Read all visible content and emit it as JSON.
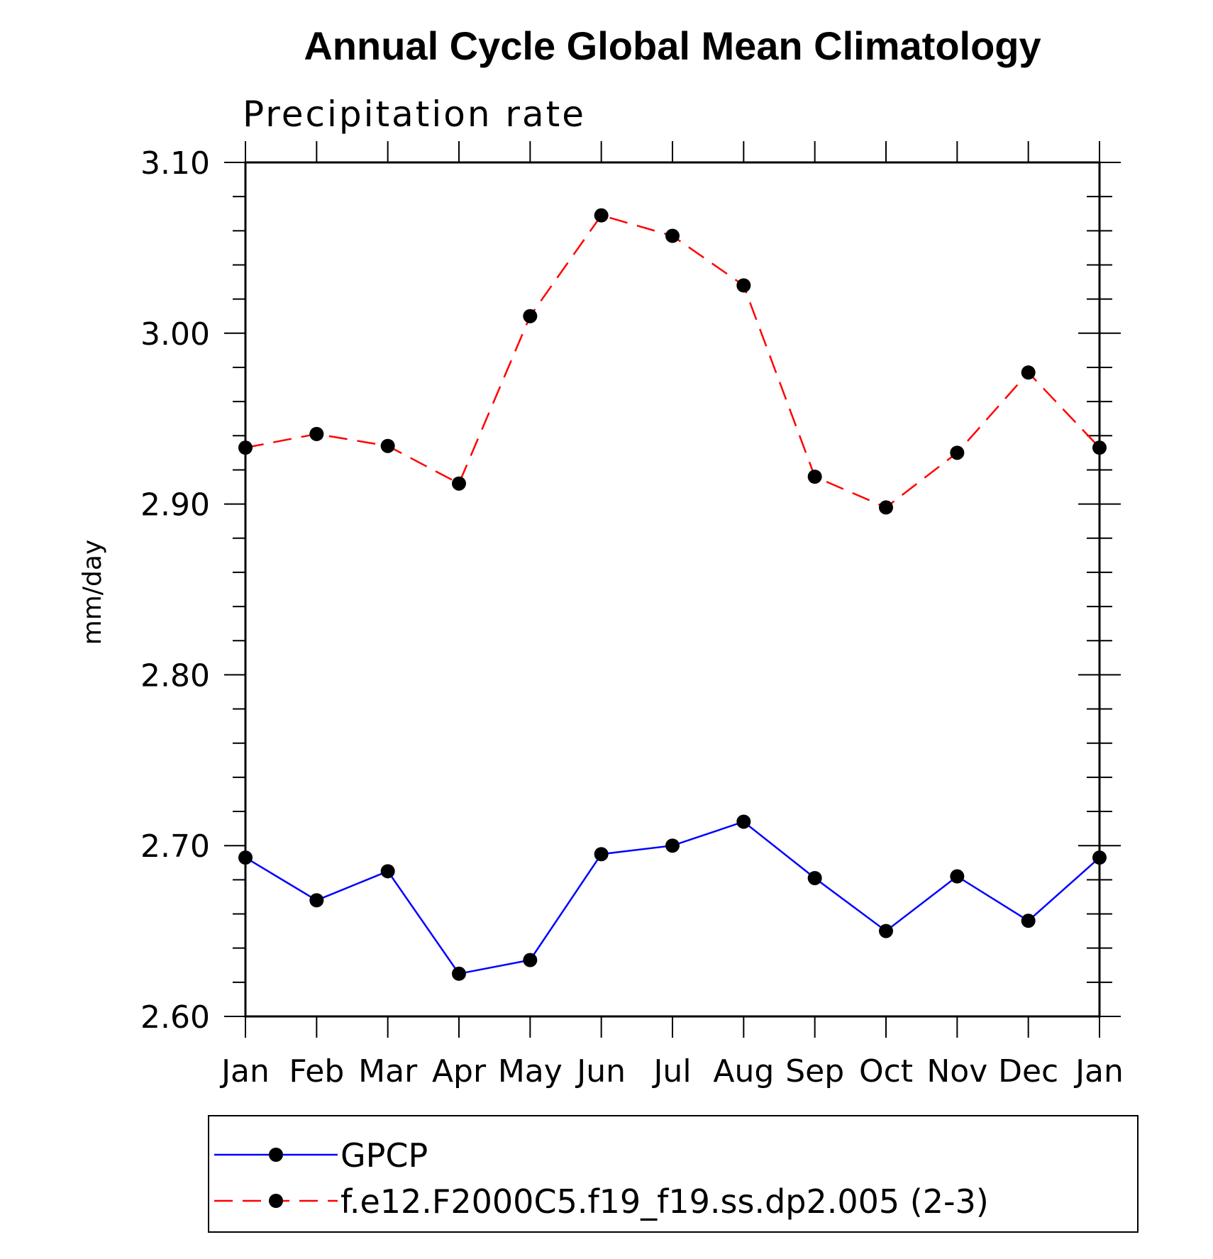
{
  "chart_data": {
    "type": "line",
    "title": "Annual Cycle Global Mean Climatology",
    "subtitle": "Precipitation rate",
    "xlabel": "",
    "ylabel": "mm/day",
    "categories": [
      "Jan",
      "Feb",
      "Mar",
      "Apr",
      "May",
      "Jun",
      "Jul",
      "Aug",
      "Sep",
      "Oct",
      "Nov",
      "Dec",
      "Jan"
    ],
    "ylim": [
      2.6,
      3.1
    ],
    "yticks": [
      "2.60",
      "2.70",
      "2.80",
      "2.90",
      "3.00",
      "3.10"
    ],
    "grid": false,
    "legend_position": "bottom",
    "series": [
      {
        "name": "GPCP",
        "color": "#0000ff",
        "line_style": "solid",
        "marker": "filled-circle",
        "values": [
          2.693,
          2.668,
          2.685,
          2.625,
          2.633,
          2.695,
          2.7,
          2.714,
          2.681,
          2.65,
          2.682,
          2.656,
          2.693
        ]
      },
      {
        "name": "f.e12.F2000C5.f19_f19.ss.dp2.005 (2-3)",
        "color": "#ff0000",
        "line_style": "dashed",
        "marker": "filled-circle",
        "values": [
          2.933,
          2.941,
          2.934,
          2.912,
          3.01,
          3.069,
          3.057,
          3.028,
          2.916,
          2.898,
          2.93,
          2.977,
          2.933
        ]
      }
    ]
  }
}
